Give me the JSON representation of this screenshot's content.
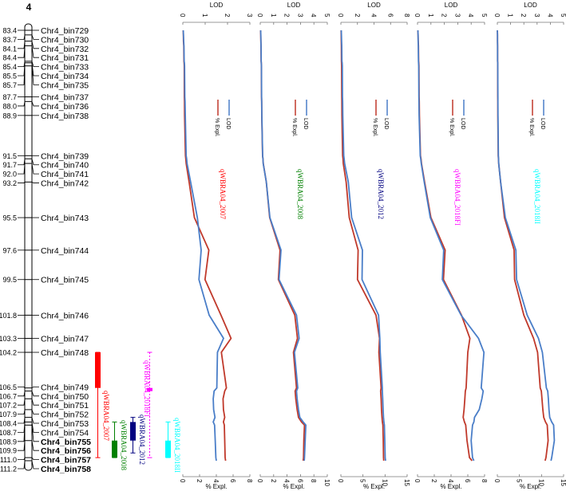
{
  "chart_data": {
    "type": "line",
    "title": "4",
    "linkage_map": {
      "title": "4",
      "markers": [
        {
          "pos": "83.4",
          "name": "Chr4_bin729",
          "bold": false
        },
        {
          "pos": "83.7",
          "name": "Chr4_bin730",
          "bold": false
        },
        {
          "pos": "84.1",
          "name": "Chr4_bin732",
          "bold": false
        },
        {
          "pos": "84.4",
          "name": "Chr4_bin731",
          "bold": false
        },
        {
          "pos": "85.4",
          "name": "Chr4_bin733",
          "bold": false
        },
        {
          "pos": "85.5",
          "name": "Chr4_bin734",
          "bold": false
        },
        {
          "pos": "85.7",
          "name": "Chr4_bin735",
          "bold": false
        },
        {
          "pos": "87.7",
          "name": "Chr4_bin737",
          "bold": false
        },
        {
          "pos": "88.0",
          "name": "Chr4_bin736",
          "bold": false
        },
        {
          "pos": "88.9",
          "name": "Chr4_bin738",
          "bold": false
        },
        {
          "pos": "91.5",
          "name": "Chr4_bin739",
          "bold": false
        },
        {
          "pos": "91.7",
          "name": "Chr4_bin740",
          "bold": false
        },
        {
          "pos": "92.0",
          "name": "Chr4_bin741",
          "bold": false
        },
        {
          "pos": "93.2",
          "name": "Chr4_bin742",
          "bold": false
        },
        {
          "pos": "95.5",
          "name": "Chr4_bin743",
          "bold": false
        },
        {
          "pos": "97.6",
          "name": "Chr4_bin744",
          "bold": false
        },
        {
          "pos": "99.5",
          "name": "Chr4_bin745",
          "bold": false
        },
        {
          "pos": "101.8",
          "name": "Chr4_bin746",
          "bold": false
        },
        {
          "pos": "103.3",
          "name": "Chr4_bin747",
          "bold": false
        },
        {
          "pos": "104.2",
          "name": "Chr4_bin748",
          "bold": false
        },
        {
          "pos": "106.5",
          "name": "Chr4_bin749",
          "bold": false
        },
        {
          "pos": "106.7",
          "name": "Chr4_bin750",
          "bold": false
        },
        {
          "pos": "107.2",
          "name": "Chr4_bin751",
          "bold": false
        },
        {
          "pos": "107.9",
          "name": "Chr4_bin752",
          "bold": false
        },
        {
          "pos": "108.4",
          "name": "Chr4_bin753",
          "bold": false
        },
        {
          "pos": "108.7",
          "name": "Chr4_bin754",
          "bold": false
        },
        {
          "pos": "108.9",
          "name": "Chr4_bin755",
          "bold": true
        },
        {
          "pos": "109.9",
          "name": "Chr4_bin756",
          "bold": true
        },
        {
          "pos": "111.0",
          "name": "Chr4_bin757",
          "bold": true
        },
        {
          "pos": "111.2",
          "name": "Chr4_bin758",
          "bold": true
        }
      ]
    },
    "qtl_bars": [
      {
        "name": "qWBRA04_2007",
        "color": "#ff0000",
        "outer": [
          104.2,
          111.0
        ],
        "inner": [
          104.2,
          106.5
        ]
      },
      {
        "name": "qWBRA04_2018FI",
        "color": "#ff00ff",
        "outer": [
          104.2,
          111.0
        ],
        "inner": [
          106.5,
          106.7
        ]
      },
      {
        "name": "qWBRA04_2008",
        "color": "#008000",
        "outer": [
          108.7,
          111.0
        ],
        "inner": [
          109.9,
          111.0
        ]
      },
      {
        "name": "qWBRA04_2012",
        "color": "#000080",
        "outer": [
          108.4,
          110.7
        ],
        "inner": [
          108.7,
          109.9
        ]
      },
      {
        "name": "qWBRA04_2018II",
        "color": "#00ffff",
        "outer": [
          108.7,
          111.0
        ],
        "inner": [
          109.9,
          111.0
        ]
      }
    ],
    "xlabel_top": "LOD",
    "xlabel_bottom": "% Expl.",
    "legend": {
      "lod": "LOD",
      "expl": "% Expl.",
      "lod_color": "#4a7ec8",
      "expl_color": "#c0392b"
    },
    "panels": [
      {
        "qtl": "qWBRA04_2007",
        "qtl_color": "#ff0000",
        "lod_ticks": [
          "0",
          "1",
          "2",
          "3"
        ],
        "lod_max": 3,
        "expl_ticks": [
          "0",
          "2",
          "4",
          "6",
          "8"
        ],
        "expl_max": 8,
        "lod": [
          0.02,
          0.03,
          0.04,
          0.05,
          0.06,
          0.07,
          0.08,
          0.09,
          0.1,
          0.11,
          0.15,
          0.17,
          0.19,
          0.35,
          0.65,
          0.82,
          0.72,
          1.18,
          1.82,
          1.55,
          1.52,
          1.4,
          1.36,
          1.38,
          1.44,
          1.36,
          1.42,
          1.45,
          1.48,
          1.5
        ],
        "expl": [
          0.05,
          0.07,
          0.08,
          0.11,
          0.13,
          0.15,
          0.17,
          0.18,
          0.2,
          0.21,
          0.31,
          0.35,
          0.4,
          0.75,
          1.38,
          3.1,
          2.65,
          4.55,
          5.75,
          4.6,
          5.2,
          5.0,
          4.8,
          4.85,
          5.0,
          4.85,
          4.95,
          5.0,
          5.05,
          5.1
        ]
      },
      {
        "qtl": "qWBRA04_2008",
        "qtl_color": "#008000",
        "lod_ticks": [
          "0",
          "1",
          "2",
          "3",
          "4",
          "5"
        ],
        "lod_max": 5,
        "expl_ticks": [
          "0",
          "2",
          "4",
          "6",
          "8",
          "10"
        ],
        "expl_max": 10,
        "lod": [
          0.03,
          0.04,
          0.05,
          0.06,
          0.07,
          0.08,
          0.09,
          0.1,
          0.11,
          0.12,
          0.18,
          0.2,
          0.22,
          0.45,
          0.72,
          1.55,
          1.4,
          2.7,
          2.9,
          2.55,
          2.8,
          2.7,
          2.75,
          2.85,
          2.95,
          3.2,
          3.4,
          3.35,
          3.3,
          3.28
        ],
        "expl": [
          0.05,
          0.07,
          0.09,
          0.11,
          0.13,
          0.15,
          0.17,
          0.19,
          0.21,
          0.23,
          0.35,
          0.4,
          0.45,
          0.9,
          1.4,
          2.95,
          2.7,
          5.15,
          5.55,
          4.95,
          5.4,
          5.2,
          5.3,
          5.5,
          5.7,
          6.15,
          6.6,
          6.5,
          6.45,
          6.4
        ]
      },
      {
        "qtl": "qWBRA04_2012",
        "qtl_color": "#000080",
        "lod_ticks": [
          "0",
          "2",
          "4",
          "6",
          "8"
        ],
        "lod_max": 8,
        "expl_ticks": [
          "0",
          "5",
          "10",
          "15"
        ],
        "expl_max": 15,
        "lod": [
          0.05,
          0.07,
          0.09,
          0.11,
          0.13,
          0.15,
          0.17,
          0.19,
          0.21,
          0.23,
          0.35,
          0.4,
          0.45,
          0.9,
          1.3,
          2.6,
          2.55,
          4.55,
          4.7,
          4.75,
          5.0,
          5.0,
          5.05,
          5.1,
          5.15,
          5.2,
          5.25,
          5.3,
          5.35,
          5.4
        ],
        "expl": [
          0.05,
          0.07,
          0.09,
          0.11,
          0.13,
          0.15,
          0.17,
          0.19,
          0.21,
          0.23,
          0.4,
          0.48,
          0.55,
          1.2,
          1.9,
          3.9,
          3.75,
          7.95,
          8.75,
          8.6,
          9.1,
          9.0,
          9.1,
          9.2,
          9.3,
          9.4,
          9.5,
          9.6,
          9.65,
          9.7
        ]
      },
      {
        "qtl": "qWBRA04_2018FI",
        "qtl_color": "#ff00ff",
        "lod_ticks": [
          "0",
          "1",
          "2",
          "3",
          "4",
          "5"
        ],
        "lod_max": 5,
        "expl_ticks": [
          "0",
          "2",
          "4",
          "6",
          "8"
        ],
        "expl_max": 8,
        "lod": [
          0.03,
          0.04,
          0.05,
          0.06,
          0.07,
          0.08,
          0.09,
          0.1,
          0.11,
          0.12,
          0.2,
          0.24,
          0.28,
          0.5,
          0.95,
          1.95,
          1.85,
          3.25,
          4.55,
          4.95,
          4.75,
          4.9,
          4.8,
          4.6,
          4.25,
          4.2,
          4.1,
          4.0,
          4.1,
          4.2
        ],
        "expl": [
          0.05,
          0.07,
          0.09,
          0.11,
          0.13,
          0.15,
          0.17,
          0.19,
          0.21,
          0.23,
          0.35,
          0.42,
          0.48,
          0.85,
          1.6,
          3.3,
          3.1,
          5.25,
          6.25,
          6.0,
          5.8,
          5.7,
          5.65,
          5.55,
          5.45,
          5.6,
          5.75,
          5.9,
          6.2,
          6.5
        ]
      },
      {
        "qtl": "qWBRA04_2018II",
        "qtl_color": "#00ffff",
        "lod_ticks": [
          "0",
          "1",
          "2",
          "3",
          "4",
          "5"
        ],
        "lod_max": 5,
        "expl_ticks": [
          "0",
          "5",
          "10",
          "15"
        ],
        "expl_max": 15,
        "lod": [
          0.0,
          0.01,
          0.01,
          0.02,
          0.02,
          0.03,
          0.03,
          0.04,
          0.04,
          0.05,
          0.08,
          0.09,
          0.1,
          0.25,
          0.6,
          1.4,
          1.45,
          2.25,
          3.1,
          3.4,
          3.7,
          3.8,
          3.85,
          3.9,
          3.95,
          4.1,
          4.25,
          4.3,
          4.1,
          4.05
        ],
        "expl": [
          0.02,
          0.03,
          0.04,
          0.05,
          0.06,
          0.07,
          0.08,
          0.09,
          0.1,
          0.11,
          0.2,
          0.25,
          0.3,
          0.75,
          1.6,
          3.8,
          3.9,
          6.0,
          8.2,
          9.1,
          9.7,
          9.95,
          10.1,
          10.3,
          10.5,
          10.9,
          11.3,
          11.5,
          11.0,
          10.8
        ]
      }
    ]
  }
}
